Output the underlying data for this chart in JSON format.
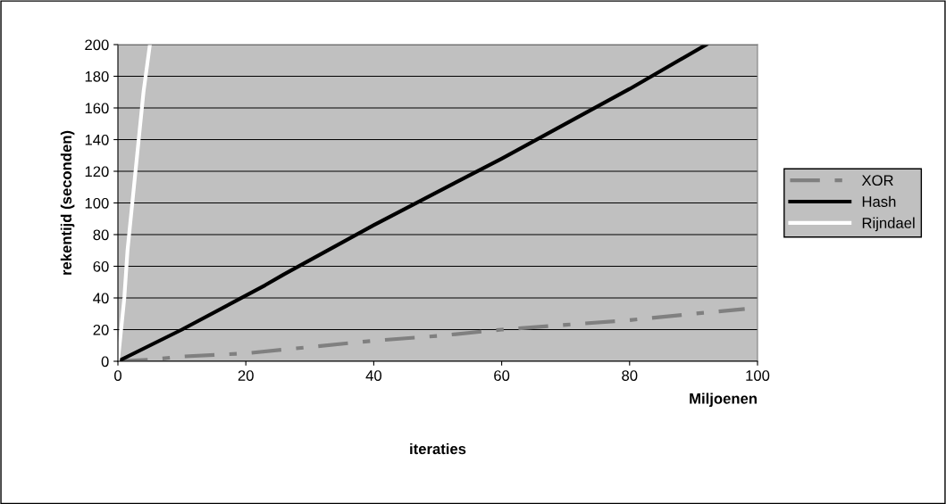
{
  "chart_data": {
    "type": "line",
    "xlabel": "iteraties",
    "ylabel": "rekentijd (seconden)",
    "annotations": [
      "Miljoenen"
    ],
    "xlim": [
      0,
      100
    ],
    "xticks": [
      0,
      20,
      40,
      60,
      80,
      100
    ],
    "ylim": [
      0,
      200
    ],
    "yticks": [
      0,
      20,
      40,
      60,
      80,
      100,
      120,
      140,
      160,
      180,
      200
    ],
    "grid": "y",
    "legend": "right",
    "marker": "none",
    "series": [
      {
        "name": "XOR",
        "color": "#808080",
        "line_style": "dashdot",
        "x": [
          0,
          5,
          10,
          20,
          30,
          40,
          50,
          60,
          70,
          80,
          90,
          98
        ],
        "values": [
          0,
          1,
          3,
          5,
          9,
          13,
          16,
          20,
          23,
          26,
          30,
          33
        ]
      },
      {
        "name": "Hash",
        "color": "#000000",
        "line_style": "solid",
        "x": [
          0,
          10,
          23,
          26,
          40,
          60,
          80,
          92
        ],
        "values": [
          0,
          20,
          48,
          55,
          86,
          128,
          172,
          200
        ]
      },
      {
        "name": "Rijndael",
        "color": "#ffffff",
        "line_style": "solid",
        "x": [
          0,
          0.5,
          1,
          1.5,
          3,
          4,
          5
        ],
        "values": [
          0,
          20,
          40,
          70,
          130,
          170,
          200
        ]
      }
    ]
  }
}
